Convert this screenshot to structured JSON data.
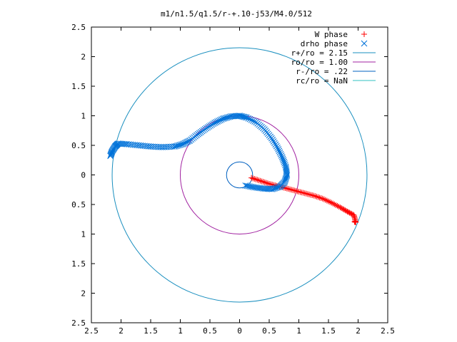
{
  "chart_data": {
    "type": "scatter",
    "title": "m1/n1.5/q1.5/r-+.10-j53/M4.0/512",
    "xlabel": "",
    "ylabel": "",
    "xlim": [
      -2.5,
      2.5
    ],
    "ylim": [
      -2.5,
      2.5
    ],
    "x_ticks": [
      -2.5,
      -2,
      -1.5,
      -1,
      -0.5,
      0,
      0.5,
      1,
      1.5,
      2,
      2.5
    ],
    "y_ticks": [
      -2.5,
      -2,
      -1.5,
      -1,
      -0.5,
      0,
      0.5,
      1,
      1.5,
      2,
      2.5
    ],
    "x_tick_labels": [
      "2.5",
      "2",
      "1.5",
      "1",
      "0.5",
      "0",
      "0.5",
      "1",
      "1.5",
      "2",
      "2.5"
    ],
    "y_tick_labels": [
      "2.5",
      "2",
      "1.5",
      "1",
      "0.5",
      "0",
      "0.5",
      "1",
      "1.5",
      "2",
      "2.5"
    ],
    "grid": false,
    "legend_position": "top-right",
    "series": [
      {
        "name": "W phase",
        "marker": "+",
        "color": "#ff0000",
        "points": [
          [
            0.2,
            -0.05
          ],
          [
            0.35,
            -0.1
          ],
          [
            0.5,
            -0.15
          ],
          [
            0.65,
            -0.19
          ],
          [
            0.8,
            -0.23
          ],
          [
            0.95,
            -0.27
          ],
          [
            1.1,
            -0.31
          ],
          [
            1.25,
            -0.35
          ],
          [
            1.4,
            -0.4
          ],
          [
            1.55,
            -0.47
          ],
          [
            1.7,
            -0.55
          ],
          [
            1.82,
            -0.62
          ],
          [
            1.93,
            -0.68
          ],
          [
            1.96,
            -0.8
          ],
          [
            1.94,
            -0.79
          ]
        ]
      },
      {
        "name": "drho phase",
        "marker": "x",
        "color": "#0072d9",
        "points": [
          [
            0.1,
            -0.18
          ],
          [
            0.25,
            -0.21
          ],
          [
            0.4,
            -0.23
          ],
          [
            0.55,
            -0.24
          ],
          [
            0.68,
            -0.2
          ],
          [
            0.76,
            -0.12
          ],
          [
            0.8,
            0.0
          ],
          [
            0.78,
            0.14
          ],
          [
            0.72,
            0.3
          ],
          [
            0.64,
            0.46
          ],
          [
            0.54,
            0.62
          ],
          [
            0.42,
            0.77
          ],
          [
            0.28,
            0.89
          ],
          [
            0.12,
            0.97
          ],
          [
            0.0,
            1.0
          ],
          [
            -0.14,
            0.99
          ],
          [
            -0.28,
            0.95
          ],
          [
            -0.42,
            0.88
          ],
          [
            -0.56,
            0.79
          ],
          [
            -0.7,
            0.69
          ],
          [
            -0.84,
            0.58
          ],
          [
            -0.96,
            0.52
          ],
          [
            -1.1,
            0.48
          ],
          [
            -1.3,
            0.47
          ],
          [
            -1.5,
            0.48
          ],
          [
            -1.7,
            0.5
          ],
          [
            -1.9,
            0.52
          ],
          [
            -2.05,
            0.53
          ],
          [
            -2.1,
            0.48
          ],
          [
            -2.15,
            0.4
          ],
          [
            -2.18,
            0.32
          ]
        ]
      }
    ],
    "curves": [
      {
        "name": "r+/ro = 2.15",
        "radius": 2.15,
        "color": "#1a8fbf"
      },
      {
        "name": "ro/ro = 1.00",
        "radius": 1.0,
        "color": "#a020a0"
      },
      {
        "name": "r-/ro =  .22",
        "radius": 0.22,
        "color": "#0060c0"
      },
      {
        "name": "rc/ro =  NaN",
        "radius": null,
        "color": "#30c0c0"
      }
    ]
  }
}
